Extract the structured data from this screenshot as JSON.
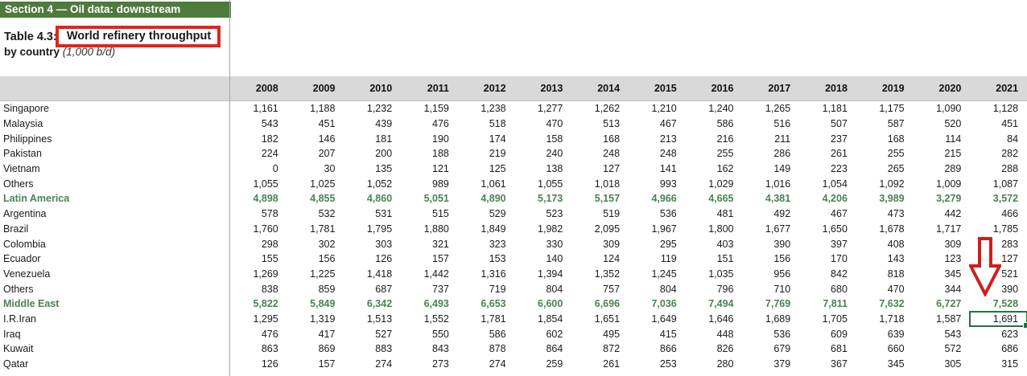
{
  "section_bar": {
    "label": "Section 4 — Oil data: downstream"
  },
  "title": {
    "prefix": "Table 4.3:",
    "highlighted": "World refinery throughput",
    "line2": "by country",
    "unit": "(1,000 b/d)"
  },
  "table": {
    "years": [
      "2008",
      "2009",
      "2010",
      "2011",
      "2012",
      "2013",
      "2014",
      "2015",
      "2016",
      "2017",
      "2018",
      "2019",
      "2020",
      "2021"
    ],
    "rows": [
      {
        "label": "Singapore",
        "type": "country",
        "values": [
          "1,161",
          "1,188",
          "1,232",
          "1,159",
          "1,238",
          "1,277",
          "1,262",
          "1,210",
          "1,240",
          "1,265",
          "1,181",
          "1,175",
          "1,090",
          "1,128"
        ]
      },
      {
        "label": "Malaysia",
        "type": "country",
        "values": [
          "543",
          "451",
          "439",
          "476",
          "518",
          "470",
          "513",
          "467",
          "586",
          "516",
          "507",
          "587",
          "520",
          "451"
        ]
      },
      {
        "label": "Philippines",
        "type": "country",
        "values": [
          "182",
          "146",
          "181",
          "190",
          "174",
          "158",
          "168",
          "213",
          "216",
          "211",
          "237",
          "168",
          "114",
          "84"
        ]
      },
      {
        "label": "Pakistan",
        "type": "country",
        "values": [
          "224",
          "207",
          "200",
          "188",
          "219",
          "240",
          "248",
          "248",
          "255",
          "286",
          "261",
          "255",
          "215",
          "282"
        ]
      },
      {
        "label": "Vietnam",
        "type": "country",
        "values": [
          "0",
          "30",
          "135",
          "121",
          "125",
          "138",
          "127",
          "141",
          "162",
          "149",
          "223",
          "265",
          "289",
          "288"
        ]
      },
      {
        "label": "Others",
        "type": "country",
        "values": [
          "1,055",
          "1,025",
          "1,052",
          "989",
          "1,061",
          "1,055",
          "1,018",
          "993",
          "1,029",
          "1,016",
          "1,054",
          "1,092",
          "1,009",
          "1,087"
        ]
      },
      {
        "label": "Latin America",
        "type": "region",
        "values": [
          "4,898",
          "4,855",
          "4,860",
          "5,051",
          "4,890",
          "5,173",
          "5,157",
          "4,966",
          "4,665",
          "4,381",
          "4,206",
          "3,989",
          "3,279",
          "3,572"
        ]
      },
      {
        "label": "Argentina",
        "type": "country",
        "values": [
          "578",
          "532",
          "531",
          "515",
          "529",
          "523",
          "519",
          "536",
          "481",
          "492",
          "467",
          "473",
          "442",
          "466"
        ]
      },
      {
        "label": "Brazil",
        "type": "country",
        "values": [
          "1,760",
          "1,781",
          "1,795",
          "1,880",
          "1,849",
          "1,982",
          "2,095",
          "1,967",
          "1,800",
          "1,677",
          "1,650",
          "1,678",
          "1,717",
          "1,785"
        ]
      },
      {
        "label": "Colombia",
        "type": "country",
        "values": [
          "298",
          "302",
          "303",
          "321",
          "323",
          "330",
          "309",
          "295",
          "403",
          "390",
          "397",
          "408",
          "309",
          "283"
        ]
      },
      {
        "label": "Ecuador",
        "type": "country",
        "values": [
          "155",
          "156",
          "126",
          "157",
          "153",
          "140",
          "124",
          "119",
          "151",
          "156",
          "170",
          "143",
          "123",
          "127"
        ]
      },
      {
        "label": "Venezuela",
        "type": "country",
        "values": [
          "1,269",
          "1,225",
          "1,418",
          "1,442",
          "1,316",
          "1,394",
          "1,352",
          "1,245",
          "1,035",
          "956",
          "842",
          "818",
          "345",
          "521"
        ]
      },
      {
        "label": "Others",
        "type": "country",
        "values": [
          "838",
          "859",
          "687",
          "737",
          "719",
          "804",
          "757",
          "804",
          "796",
          "710",
          "680",
          "470",
          "344",
          "390"
        ]
      },
      {
        "label": "Middle East",
        "type": "region",
        "values": [
          "5,822",
          "5,849",
          "6,342",
          "6,493",
          "6,653",
          "6,600",
          "6,696",
          "7,036",
          "7,494",
          "7,769",
          "7,811",
          "7,632",
          "6,727",
          "7,528"
        ]
      },
      {
        "label": "I.R.Iran",
        "type": "country",
        "values": [
          "1,295",
          "1,319",
          "1,513",
          "1,552",
          "1,781",
          "1,854",
          "1,651",
          "1,649",
          "1,646",
          "1,689",
          "1,705",
          "1,718",
          "1,587",
          "1,691"
        ]
      },
      {
        "label": "Iraq",
        "type": "country",
        "values": [
          "476",
          "417",
          "527",
          "550",
          "586",
          "602",
          "495",
          "415",
          "448",
          "536",
          "609",
          "639",
          "543",
          "623"
        ]
      },
      {
        "label": "Kuwait",
        "type": "country",
        "values": [
          "863",
          "869",
          "883",
          "843",
          "878",
          "864",
          "872",
          "866",
          "826",
          "679",
          "681",
          "660",
          "572",
          "686"
        ]
      },
      {
        "label": "Qatar",
        "type": "country",
        "values": [
          "126",
          "157",
          "274",
          "273",
          "274",
          "259",
          "261",
          "253",
          "280",
          "379",
          "367",
          "345",
          "305",
          "315"
        ]
      }
    ],
    "selection": {
      "row_label": "I.R.Iran",
      "year": "2021",
      "value": "1,691"
    }
  },
  "annotations": {
    "red_box_target": "World refinery throughput",
    "red_arrow_points_to": "2021 column",
    "colors": {
      "annotation_red": "#e1251b",
      "selection_green": "#217346",
      "section_green": "#4e7b3c",
      "region_green": "#4a8350",
      "header_gray": "#d9d9d9"
    }
  }
}
